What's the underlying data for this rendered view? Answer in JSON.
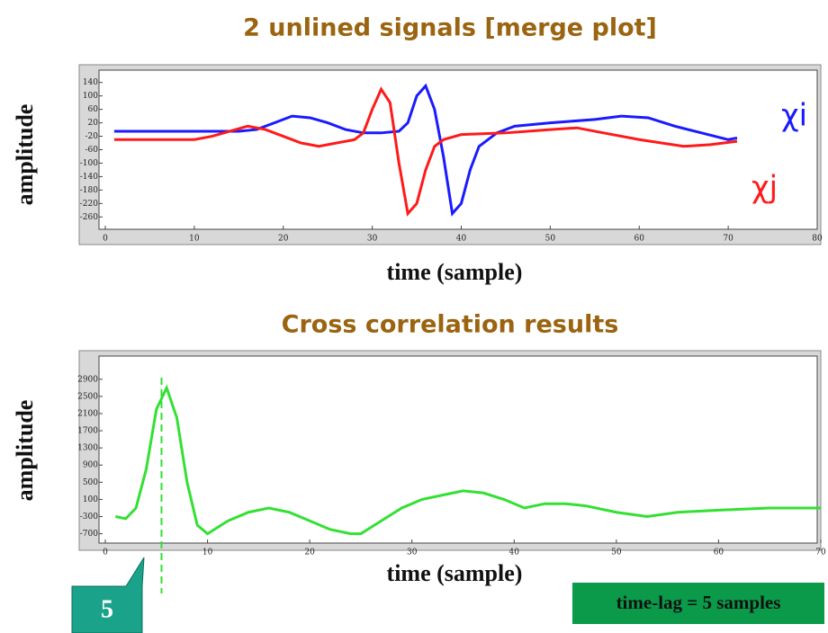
{
  "chart_data": [
    {
      "type": "line",
      "title": "2 unlined signals [merge plot]",
      "ylabel": "amplitude",
      "xlabel": "time (sample)",
      "xlim": [
        0,
        80
      ],
      "xticks": [
        0,
        10,
        20,
        30,
        40,
        50,
        60,
        70,
        80
      ],
      "ylim": [
        -270,
        150
      ],
      "yticks": [
        140,
        100,
        60,
        20,
        -20,
        -60,
        -100,
        -140,
        -180,
        -220,
        -260
      ],
      "series": [
        {
          "name": "χi",
          "color": "#1a1aff",
          "x": [
            1,
            10,
            15,
            17,
            19,
            21,
            23,
            25,
            27,
            29,
            31,
            33,
            34,
            35,
            36,
            37,
            38,
            39,
            40,
            41,
            42,
            44,
            46,
            50,
            55,
            58,
            61,
            64,
            67,
            70,
            71
          ],
          "values": [
            -5,
            -5,
            -5,
            0,
            20,
            40,
            35,
            20,
            0,
            -10,
            -10,
            -5,
            20,
            100,
            130,
            60,
            -80,
            -250,
            -220,
            -120,
            -50,
            -10,
            10,
            20,
            30,
            40,
            35,
            10,
            -10,
            -30,
            -25
          ]
        },
        {
          "name": "χj",
          "color": "#ff1a1a",
          "x": [
            1,
            10,
            12,
            14,
            16,
            18,
            20,
            22,
            24,
            26,
            28,
            29,
            30,
            31,
            32,
            33,
            34,
            35,
            36,
            37,
            38,
            40,
            45,
            50,
            53,
            56,
            60,
            65,
            68,
            71
          ],
          "values": [
            -30,
            -30,
            -20,
            -5,
            10,
            0,
            -20,
            -40,
            -50,
            -40,
            -30,
            -10,
            60,
            120,
            80,
            -100,
            -250,
            -220,
            -120,
            -50,
            -30,
            -15,
            -10,
            0,
            5,
            -10,
            -30,
            -50,
            -45,
            -35
          ]
        }
      ]
    },
    {
      "type": "line",
      "title": "Cross correlation results",
      "ylabel": "amplitude",
      "xlabel": "time (sample)",
      "xlim": [
        0,
        70
      ],
      "xticks": [
        0,
        10,
        20,
        30,
        40,
        50,
        60,
        70
      ],
      "ylim": [
        -750,
        3000
      ],
      "yticks": [
        2900,
        2500,
        2100,
        1700,
        1300,
        900,
        500,
        100,
        -300,
        -700
      ],
      "lag_line_x": 5.5,
      "lag_label": "5",
      "result_label": "time-lag = 5 samples",
      "series": [
        {
          "color": "#33e033",
          "x": [
            1,
            2,
            3,
            4,
            5,
            6,
            7,
            8,
            9,
            10,
            12,
            14,
            16,
            18,
            20,
            22,
            24,
            25,
            27,
            29,
            31,
            33,
            35,
            37,
            39,
            41,
            43,
            45,
            47,
            50,
            53,
            56,
            60,
            65,
            70
          ],
          "values": [
            -300,
            -350,
            -100,
            800,
            2200,
            2700,
            2000,
            500,
            -500,
            -700,
            -400,
            -200,
            -100,
            -200,
            -400,
            -600,
            -700,
            -700,
            -400,
            -100,
            100,
            200,
            300,
            250,
            100,
            -100,
            0,
            0,
            -50,
            -200,
            -300,
            -200,
            -150,
            -100,
            -100
          ]
        }
      ]
    }
  ]
}
